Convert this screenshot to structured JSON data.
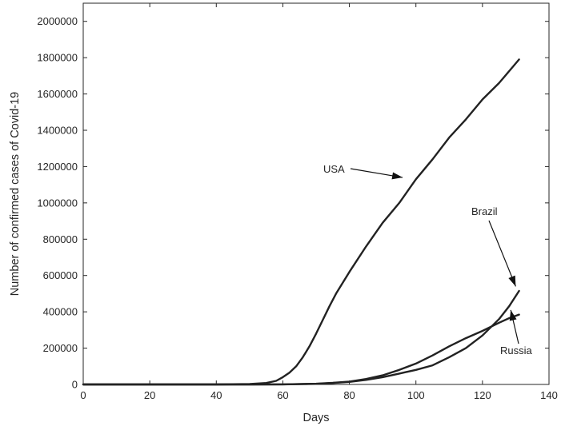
{
  "chart_data": {
    "type": "line",
    "title": "",
    "xlabel": "Days",
    "ylabel": "Number of confirmed cases of Covid-19",
    "xlim": [
      0,
      140
    ],
    "ylim": [
      0,
      2100000
    ],
    "xticks": [
      0,
      20,
      40,
      60,
      80,
      100,
      120,
      140
    ],
    "yticks": [
      0,
      200000,
      400000,
      600000,
      800000,
      1000000,
      1200000,
      1400000,
      1600000,
      1800000,
      2000000
    ],
    "grid": false,
    "legend": "none",
    "line_color": "#222222",
    "series": [
      {
        "label": "USA",
        "x": [
          0,
          40,
          50,
          55,
          58,
          60,
          62,
          64,
          66,
          68,
          70,
          72,
          74,
          76,
          80,
          85,
          90,
          95,
          100,
          105,
          110,
          115,
          120,
          125,
          131
        ],
        "y": [
          0,
          0,
          2000,
          8000,
          20000,
          40000,
          65000,
          100000,
          150000,
          210000,
          280000,
          355000,
          430000,
          500000,
          620000,
          760000,
          890000,
          1000000,
          1130000,
          1240000,
          1360000,
          1460000,
          1570000,
          1660000,
          1790000
        ]
      },
      {
        "label": "Brazil",
        "x": [
          0,
          50,
          60,
          70,
          75,
          80,
          85,
          90,
          95,
          100,
          105,
          110,
          115,
          120,
          125,
          128,
          131
        ],
        "y": [
          0,
          0,
          500,
          3000,
          8000,
          14000,
          25000,
          40000,
          60000,
          80000,
          105000,
          150000,
          200000,
          270000,
          360000,
          430000,
          515000
        ]
      },
      {
        "label": "Russia",
        "x": [
          0,
          50,
          60,
          70,
          75,
          80,
          85,
          90,
          95,
          100,
          105,
          110,
          115,
          120,
          125,
          128,
          131
        ],
        "y": [
          0,
          0,
          500,
          4000,
          9000,
          16000,
          30000,
          50000,
          80000,
          115000,
          160000,
          210000,
          255000,
          295000,
          340000,
          365000,
          385000
        ]
      }
    ],
    "annotations": [
      {
        "text": "USA",
        "target_x": 96,
        "target_y": 1140000
      },
      {
        "text": "Brazil",
        "target_x": 130,
        "target_y": 540000
      },
      {
        "text": "Russia",
        "target_x": 128.5,
        "target_y": 410000
      }
    ]
  }
}
